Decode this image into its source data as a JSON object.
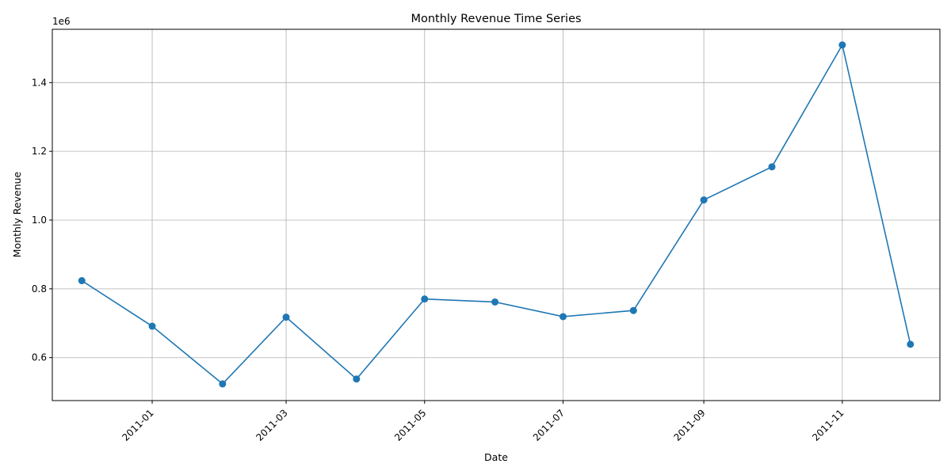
{
  "chart_data": {
    "type": "line",
    "title": "Monthly Revenue Time Series",
    "xlabel": "Date",
    "ylabel": "Monthly Revenue",
    "y_offset_label": "1e6",
    "grid": true,
    "legend": "none",
    "color": "#1f77b4",
    "marker": "circle",
    "x_ticks": [
      "2011-01",
      "2011-03",
      "2011-05",
      "2011-07",
      "2011-09",
      "2011-11"
    ],
    "y_ticks": [
      "0.6",
      "0.8",
      "1.0",
      "1.2",
      "1.4"
    ],
    "xlim": [
      "2010-11-18",
      "2011-12-14"
    ],
    "ylim": [
      475000,
      1555000
    ],
    "series": [
      {
        "x": [
          "2010-12-01",
          "2011-01-01",
          "2011-02-01",
          "2011-03-01",
          "2011-04-01",
          "2011-05-01",
          "2011-06-01",
          "2011-07-01",
          "2011-08-01",
          "2011-09-01",
          "2011-10-01",
          "2011-11-01",
          "2011-12-01"
        ],
        "values": [
          823746,
          691364,
          523631,
          717639,
          537809,
          770536,
          761740,
          719221,
          737014,
          1058590,
          1154979,
          1509496,
          638792
        ]
      }
    ]
  }
}
